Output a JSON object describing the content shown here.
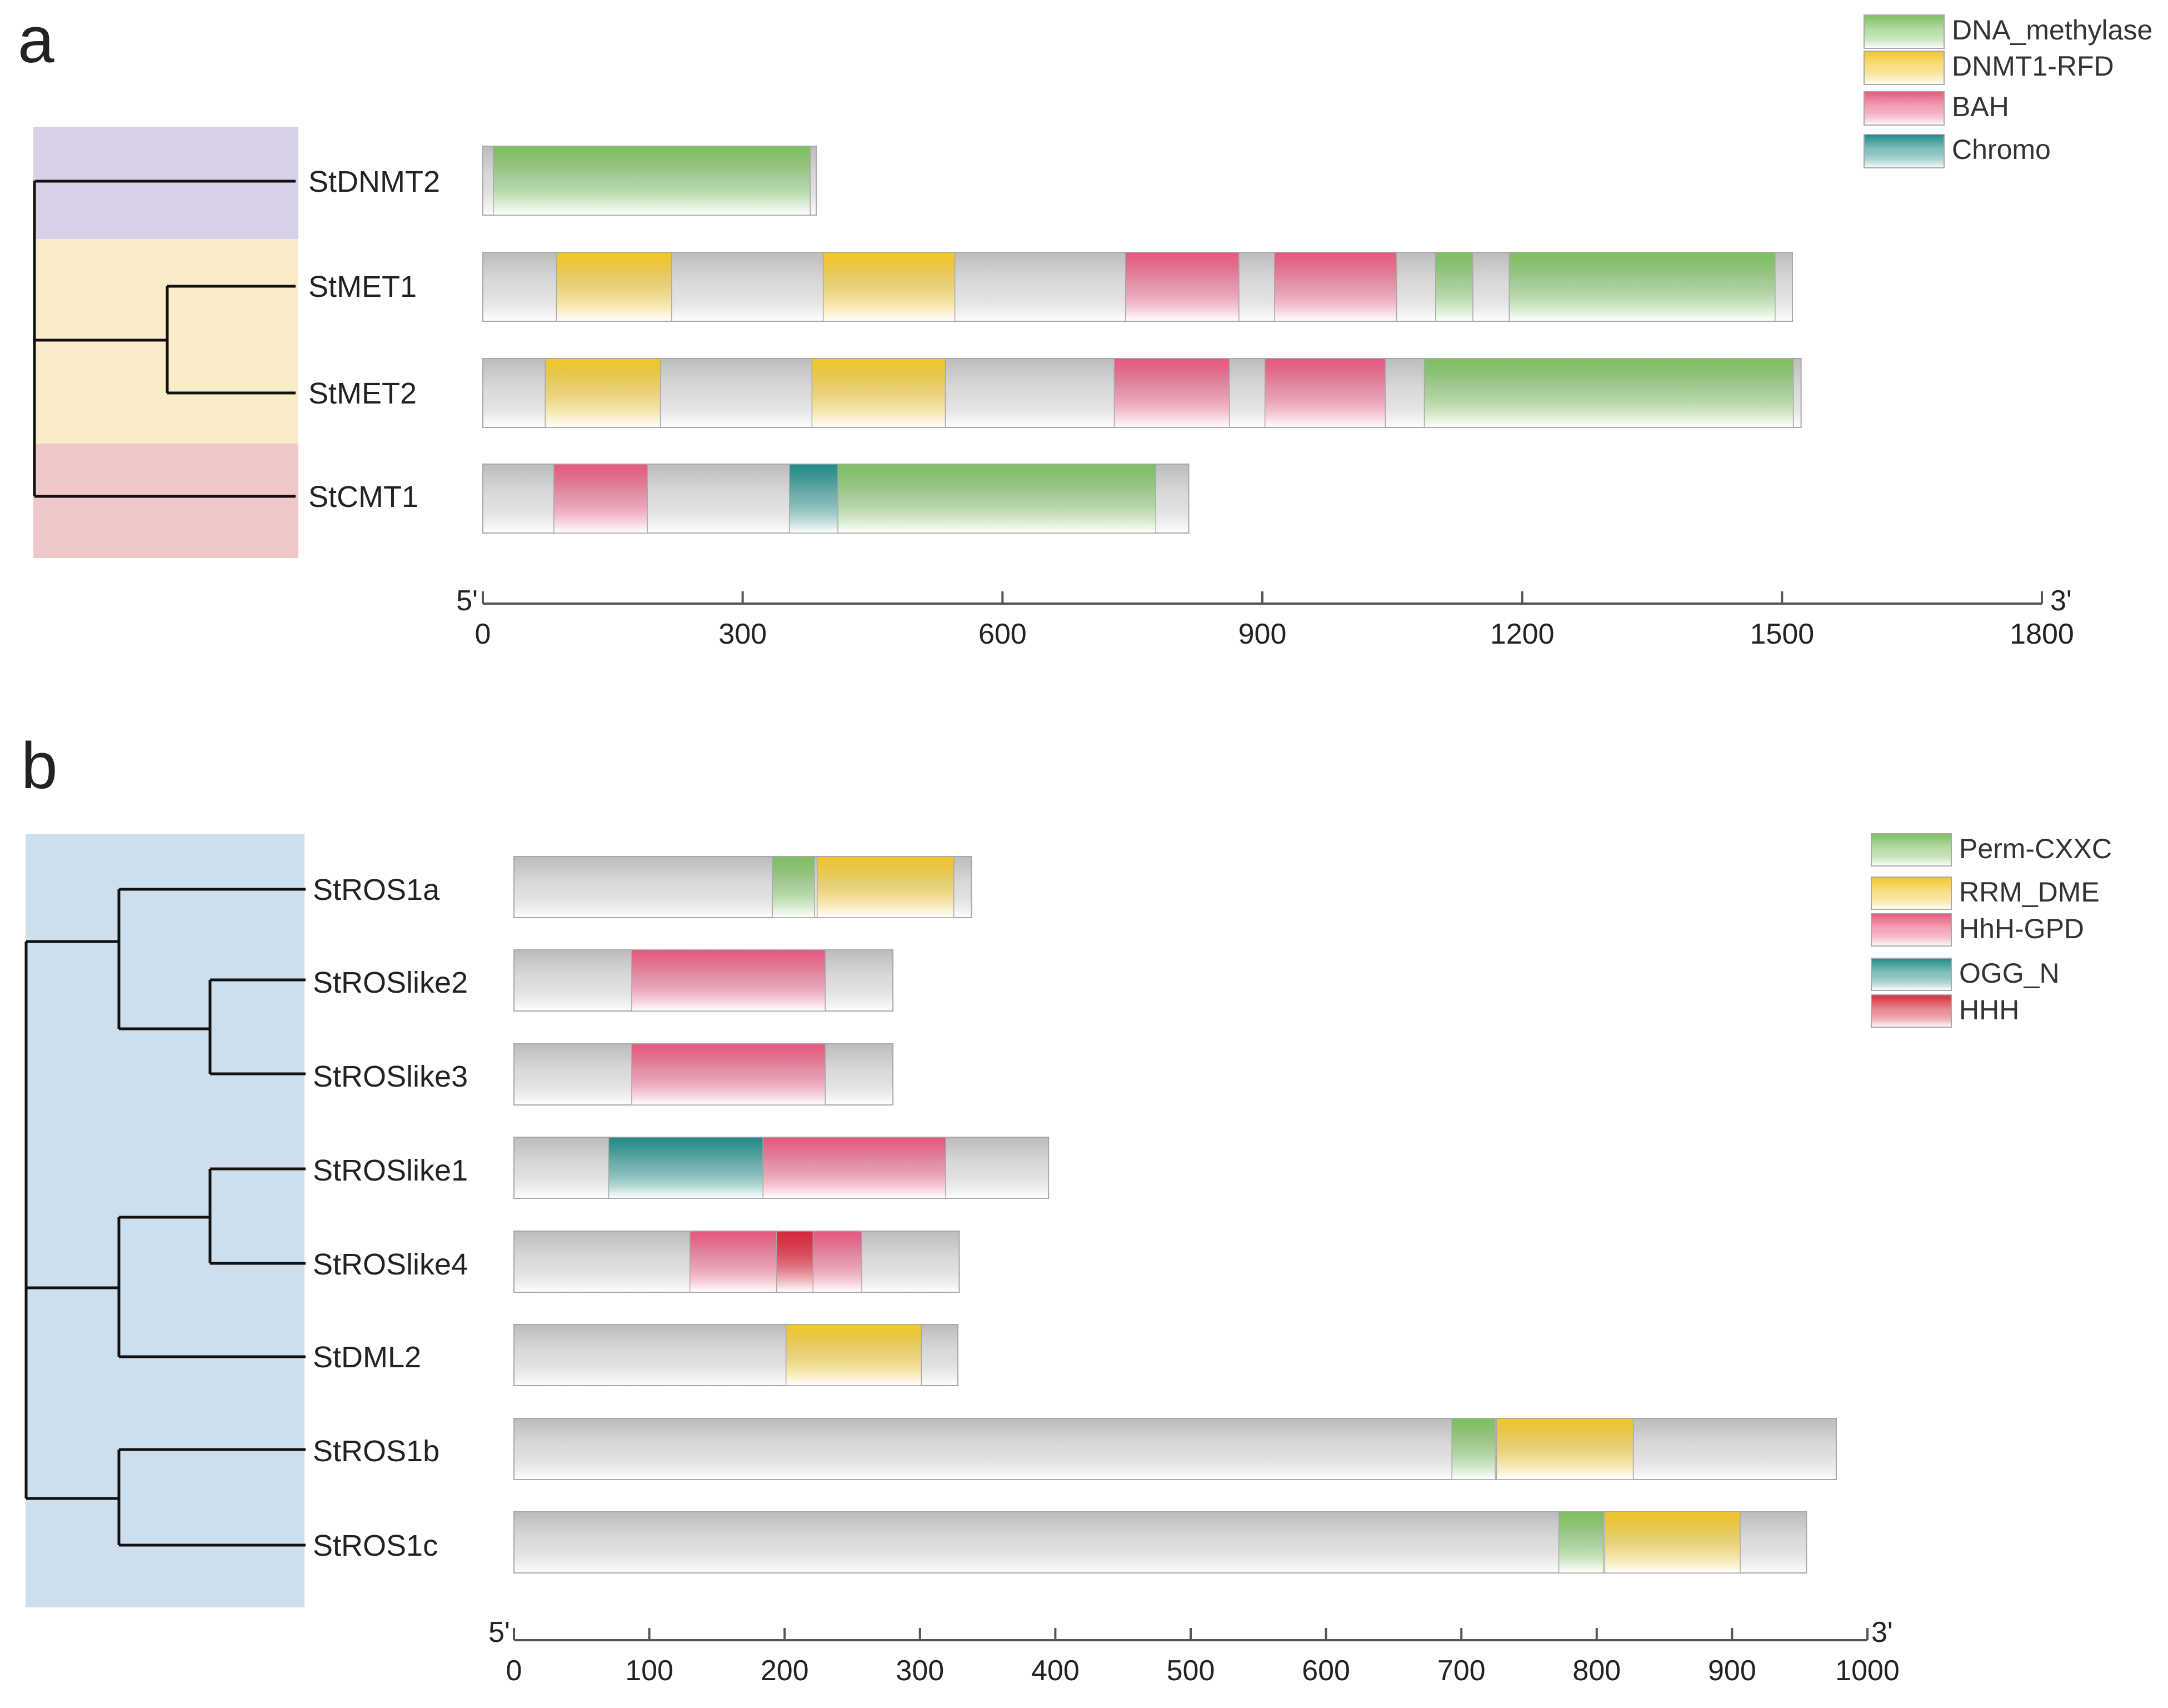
{
  "colors": {
    "DNA_methylase": "#7cc060",
    "DNMT1-RFD": "#f2c626",
    "BAH": "#e8587e",
    "Chromo": "#1e8c87",
    "Perm-CXXC": "#7cc060",
    "RRM_DME": "#f2c626",
    "HhH-GPD": "#e8587e",
    "OGG_N": "#1e8c87",
    "HHH": "#d42a3a",
    "backbone": "#bcbcbc",
    "clade_purple": "#d8d0e6",
    "clade_yellow": "#faecc9",
    "clade_pink": "#f1c8ca",
    "clade_blue": "#cddeed"
  },
  "panel_a": {
    "letter": "a",
    "legend": [
      "DNA_methylase",
      "DNMT1-RFD",
      "BAH",
      "Chromo"
    ],
    "axis": {
      "start_label": "5'",
      "end_label": "3'",
      "min": 0,
      "max": 1800,
      "ticks": [
        0,
        300,
        600,
        900,
        1200,
        1500,
        1800
      ]
    },
    "genes": [
      {
        "name": "StDNMT2",
        "length": 385,
        "domains": [
          {
            "type": "DNA_methylase",
            "start": 12,
            "end": 378
          }
        ]
      },
      {
        "name": "StMET1",
        "length": 1512,
        "domains": [
          {
            "type": "DNMT1-RFD",
            "start": 85,
            "end": 218
          },
          {
            "type": "DNMT1-RFD",
            "start": 393,
            "end": 545
          },
          {
            "type": "BAH",
            "start": 742,
            "end": 873
          },
          {
            "type": "BAH",
            "start": 914,
            "end": 1055
          },
          {
            "type": "DNA_methylase",
            "start": 1100,
            "end": 1143
          },
          {
            "type": "DNA_methylase",
            "start": 1185,
            "end": 1492
          }
        ]
      },
      {
        "name": "StMET2",
        "length": 1522,
        "domains": [
          {
            "type": "DNMT1-RFD",
            "start": 72,
            "end": 205
          },
          {
            "type": "DNMT1-RFD",
            "start": 380,
            "end": 534
          },
          {
            "type": "BAH",
            "start": 729,
            "end": 862
          },
          {
            "type": "BAH",
            "start": 903,
            "end": 1042
          },
          {
            "type": "DNA_methylase",
            "start": 1087,
            "end": 1513
          }
        ]
      },
      {
        "name": "StCMT1",
        "length": 815,
        "domains": [
          {
            "type": "BAH",
            "start": 82,
            "end": 190
          },
          {
            "type": "Chromo",
            "start": 354,
            "end": 410
          },
          {
            "type": "DNA_methylase",
            "start": 410,
            "end": 777
          }
        ]
      }
    ]
  },
  "panel_b": {
    "letter": "b",
    "legend": [
      "Perm-CXXC",
      "RRM_DME",
      "HhH-GPD",
      "OGG_N",
      "HHH"
    ],
    "axis": {
      "start_label": "5'",
      "end_label": "3'",
      "min": 0,
      "max": 1000,
      "ticks": [
        0,
        100,
        200,
        300,
        400,
        500,
        600,
        700,
        800,
        900,
        1000
      ]
    },
    "genes": [
      {
        "name": "StROS1a",
        "length": 338,
        "domains": [
          {
            "type": "Perm-CXXC",
            "start": 191,
            "end": 222
          },
          {
            "type": "RRM_DME",
            "start": 224,
            "end": 325
          }
        ]
      },
      {
        "name": "StROSlike2",
        "length": 280,
        "domains": [
          {
            "type": "HhH-GPD",
            "start": 87,
            "end": 230
          }
        ]
      },
      {
        "name": "StROSlike3",
        "length": 280,
        "domains": [
          {
            "type": "HhH-GPD",
            "start": 87,
            "end": 230
          }
        ]
      },
      {
        "name": "StROSlike1",
        "length": 395,
        "domains": [
          {
            "type": "OGG_N",
            "start": 70,
            "end": 184
          },
          {
            "type": "HhH-GPD",
            "start": 184,
            "end": 319
          }
        ]
      },
      {
        "name": "StROSlike4",
        "length": 329,
        "domains": [
          {
            "type": "HhH-GPD",
            "start": 130,
            "end": 257
          },
          {
            "type": "HHH",
            "start": 194,
            "end": 221
          }
        ]
      },
      {
        "name": "StDML2",
        "length": 328,
        "domains": [
          {
            "type": "RRM_DME",
            "start": 201,
            "end": 301
          }
        ]
      },
      {
        "name": "StROS1b",
        "length": 977,
        "domains": [
          {
            "type": "Perm-CXXC",
            "start": 693,
            "end": 725
          },
          {
            "type": "RRM_DME",
            "start": 726,
            "end": 827
          }
        ]
      },
      {
        "name": "StROS1c",
        "length": 955,
        "domains": [
          {
            "type": "Perm-CXXC",
            "start": 772,
            "end": 805
          },
          {
            "type": "RRM_DME",
            "start": 806,
            "end": 906
          }
        ]
      }
    ]
  }
}
